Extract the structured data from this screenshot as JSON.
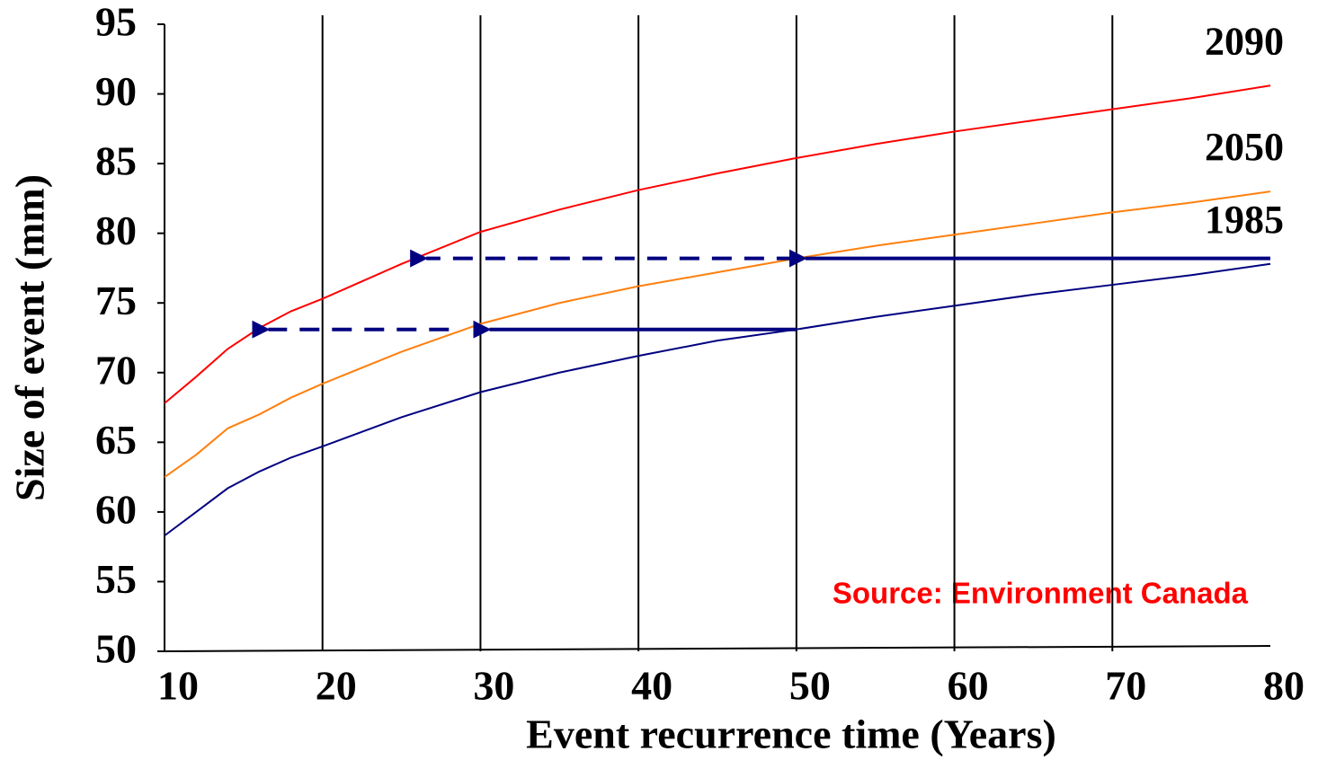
{
  "chart_data": {
    "type": "line",
    "x_label": "Event recurrence time (Years)",
    "y_label": "Size of event (mm)",
    "annotation": "Source: Environment Canada",
    "x": [
      10,
      12,
      14,
      16,
      18,
      20,
      25,
      30,
      35,
      40,
      45,
      50,
      55,
      60,
      65,
      70,
      75,
      80
    ],
    "series": [
      {
        "name": "2090",
        "color": "#ff0000",
        "values": [
          67.8,
          69.7,
          71.7,
          73.2,
          74.4,
          75.3,
          77.8,
          80.1,
          81.7,
          83.1,
          84.3,
          85.4,
          86.4,
          87.3,
          88.1,
          88.9,
          89.7,
          90.6
        ]
      },
      {
        "name": "2050",
        "color": "#ff7f0e",
        "values": [
          62.5,
          64.1,
          66.0,
          67.0,
          68.2,
          69.2,
          71.5,
          73.5,
          75.0,
          76.2,
          77.2,
          78.2,
          79.1,
          79.9,
          80.7,
          81.5,
          82.2,
          83.0
        ]
      },
      {
        "name": "1985",
        "color": "#000080",
        "values": [
          58.3,
          60.0,
          61.7,
          62.9,
          63.9,
          64.7,
          66.8,
          68.6,
          70.0,
          71.2,
          72.3,
          73.1,
          74.0,
          74.8,
          75.6,
          76.3,
          77.0,
          77.8
        ]
      }
    ],
    "arrows": [
      {
        "y": 78.2,
        "x_from": 80,
        "x_to": 50,
        "style": "solid",
        "color": "#000080"
      },
      {
        "y": 78.2,
        "x_from": 50,
        "x_to": 26,
        "style": "dashed",
        "color": "#000080"
      },
      {
        "y": 73.1,
        "x_from": 50,
        "x_to": 30,
        "style": "solid",
        "color": "#000080"
      },
      {
        "y": 73.1,
        "x_from": 28,
        "x_to": 16,
        "style": "dashed",
        "color": "#000080"
      }
    ],
    "xlim": [
      10,
      80
    ],
    "xticks": [
      10,
      20,
      30,
      40,
      50,
      60,
      70,
      80
    ],
    "ylim": [
      50,
      95
    ],
    "yticks": [
      50,
      55,
      60,
      65,
      70,
      75,
      80,
      85,
      90,
      95
    ],
    "grid": true
  }
}
